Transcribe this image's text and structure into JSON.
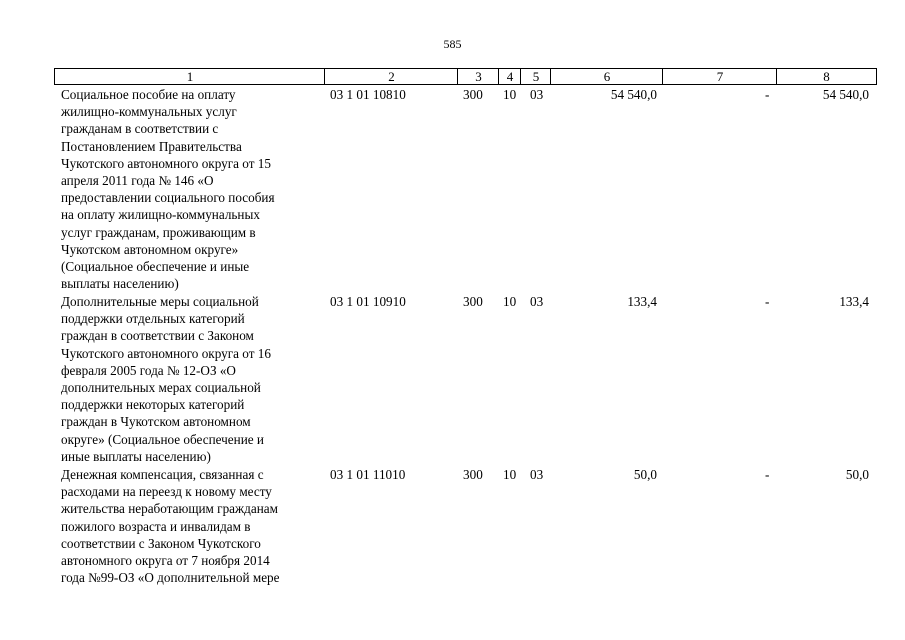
{
  "page_number": "585",
  "header": [
    "1",
    "2",
    "3",
    "4",
    "5",
    "6",
    "7",
    "8"
  ],
  "rows": [
    {
      "description": "Социальное пособие на оплату\nжилищно-коммунальных услуг\nгражданам в соответствии с\nПостановлением Правительства\nЧукотского автономного округа от 15\nапреля 2011 года № 146 «О\nпредоставлении социального пособия\nна оплату жилищно-коммунальных\nуслуг гражданам, проживающим в\nЧукотском автономном округе»\n(Социальное обеспечение и иные\nвыплаты населению)",
      "code": "03 1 01 10810",
      "col3": "300",
      "col4": "10",
      "col5": "03",
      "col6": "54 540,0",
      "col7": "-",
      "col8": "54 540,0"
    },
    {
      "description": "Дополнительные меры социальной\nподдержки отдельных категорий\nграждан в соответствии с Законом\nЧукотского автономного округа от 16\nфевраля 2005 года № 12-ОЗ «О\nдополнительных мерах социальной\nподдержки некоторых категорий\nграждан в Чукотском автономном\nокруге» (Социальное обеспечение и\nиные выплаты населению)",
      "code": "03 1 01 10910",
      "col3": "300",
      "col4": "10",
      "col5": "03",
      "col6": "133,4",
      "col7": "-",
      "col8": "133,4"
    },
    {
      "description": "Денежная компенсация, связанная с\nрасходами на переезд к новому месту\nжительства неработающим гражданам\nпожилого возраста и инвалидам в\nсоответствии с Законом Чукотского\nавтономного округа от 7 ноября 2014\nгода №99-ОЗ «О дополнительной мере",
      "code": "03 1 01 11010",
      "col3": "300",
      "col4": "10",
      "col5": "03",
      "col6": "50,0",
      "col7": "-",
      "col8": "50,0"
    }
  ]
}
